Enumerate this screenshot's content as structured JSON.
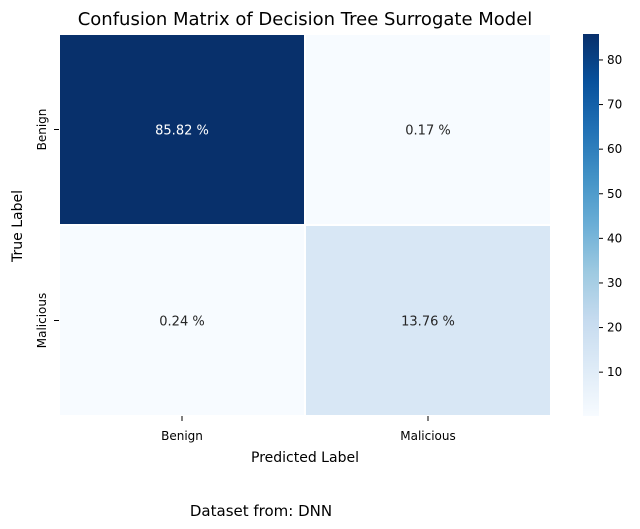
{
  "chart_data": {
    "type": "heatmap",
    "title": "Confusion Matrix of Decision Tree Surrogate Model",
    "xlabel": "Predicted Label",
    "ylabel": "True Label",
    "x_categories": [
      "Benign",
      "Malicious"
    ],
    "y_categories": [
      "Benign",
      "Malicious"
    ],
    "values": [
      [
        85.82,
        0.17
      ],
      [
        0.24,
        13.76
      ]
    ],
    "cell_labels": [
      [
        "85.82 %",
        "0.17 %"
      ],
      [
        "0.24 %",
        "13.76 %"
      ]
    ],
    "colormap": "Blues",
    "vmin": 0.17,
    "vmax": 85.82,
    "colorbar_ticks": [
      10,
      20,
      30,
      40,
      50,
      60,
      70,
      80
    ]
  },
  "footer": "Dataset from: DNN"
}
